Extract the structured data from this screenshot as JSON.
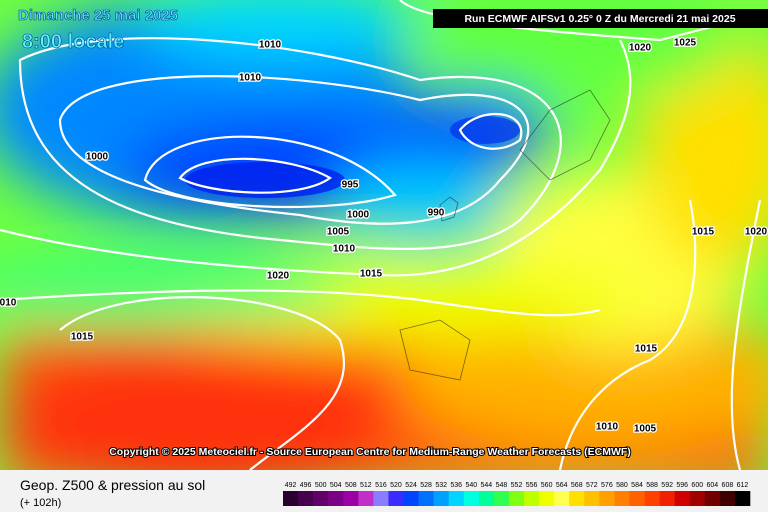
{
  "header": {
    "day": "Dimanche 25 mai 2025",
    "time": "8:00 locale",
    "run": "Run ECMWF AIFSv1 0.25° 0 Z du Mercredi 21 mai 2025"
  },
  "isobar_labels": [
    "1010",
    "1010",
    "1000",
    "995",
    "1000",
    "990",
    "1005",
    "1010",
    "1020",
    "1015",
    "1015",
    "010",
    "1020",
    "1025",
    "1015",
    "1020",
    "1015",
    "1010",
    "1005"
  ],
  "copyright": "Copyright © 2025 Meteociel.fr - Source European Centre for Medium-Range Weather Forecasts (ECMWF)",
  "footer": {
    "title": "Geop. Z500 & pression au sol",
    "lead": "(+ 102h)"
  },
  "scale": {
    "labels": [
      492,
      496,
      500,
      504,
      508,
      512,
      516,
      520,
      524,
      528,
      532,
      536,
      540,
      544,
      548,
      552,
      556,
      560,
      564,
      568,
      572,
      576,
      580,
      584,
      588,
      592,
      596,
      600,
      604,
      608,
      612
    ],
    "colors": [
      "#2a0030",
      "#45004e",
      "#600068",
      "#7c0086",
      "#9a00a4",
      "#c030c8",
      "#8a7cff",
      "#3a2cff",
      "#0044ff",
      "#0070ff",
      "#00a0ff",
      "#00d4ff",
      "#00ffe0",
      "#00ff98",
      "#30ff50",
      "#80ff10",
      "#c0ff00",
      "#f0ff00",
      "#ffff50",
      "#ffe000",
      "#ffc000",
      "#ffa000",
      "#ff8000",
      "#ff6000",
      "#ff4000",
      "#f02000",
      "#d00000",
      "#a00000",
      "#700000",
      "#400000",
      "#000000"
    ]
  }
}
